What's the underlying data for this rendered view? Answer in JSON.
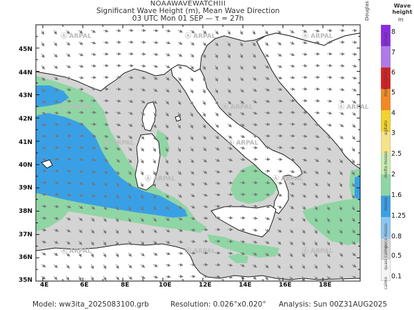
{
  "header": {
    "line1": "NOAAWAVEWATCHIII",
    "line2": "Significant Wave Height (m), Mean Wave Direction",
    "line3": "03 UTC Mon 01 SEP   —   τ = 27h"
  },
  "axes": {
    "lat_labels": [
      "45N",
      "44N",
      "43N",
      "42N",
      "41N",
      "40N",
      "39N",
      "38N",
      "37N",
      "36N",
      "35N"
    ],
    "lon_labels": [
      "4E",
      "6E",
      "8E",
      "10E",
      "12E",
      "14E",
      "16E",
      "18E"
    ]
  },
  "watermark": "ARPAL",
  "colorbar": {
    "title": "Wave height",
    "unit": "m",
    "left_title": "Douglas",
    "values": [
      "8",
      "7",
      "6",
      "5",
      "4",
      "3",
      "2.5",
      "2",
      "1.6",
      "1.25",
      "0.8",
      "0.5",
      "0.1"
    ],
    "sea_states": [
      "grosso",
      "molto agitato",
      "agitato",
      "molto mosso",
      "mosso",
      "poco mosso",
      "quasi calmo",
      "calmo"
    ],
    "colors": {
      "calm": "#d4d4d4",
      "green": "#8fd6a4",
      "blue": "#3aa0e6",
      "yellow": "#f2d22e",
      "orange": "#f08a24",
      "red": "#d92020",
      "purple": "#8a2be2"
    }
  },
  "map_colors": {
    "sea_calm": "#d4d4d4",
    "sea_moderate": "#8fd6a4",
    "sea_rough": "#3aa0e6",
    "land": "#ffffff",
    "coast": "#1a1a1a",
    "arrow": "#777777"
  },
  "footer": {
    "model": "Model:  ww3ita_2025083100.grb",
    "resolution": "Resolution:  0.026°x0.020°",
    "analysis": "Analysis:  Sun  00Z31AUG2025"
  }
}
